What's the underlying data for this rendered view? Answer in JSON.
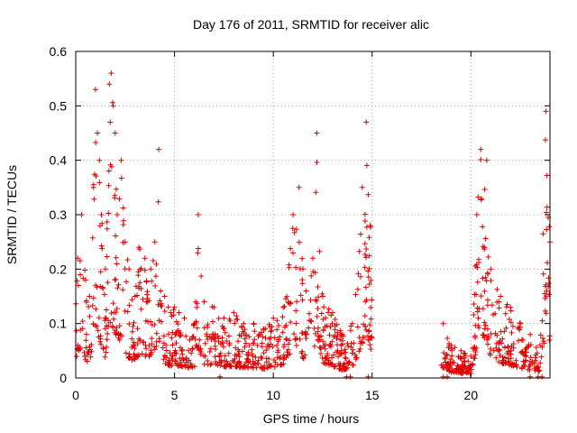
{
  "chart_data": {
    "type": "scatter",
    "title": "Day 176 of 2011, SRMTID for receiver alic",
    "xlabel": "GPS time / hours",
    "ylabel": "SRMTID / TECUs",
    "xlim": [
      0,
      24
    ],
    "ylim": [
      0,
      0.6
    ],
    "xticks": [
      0,
      5,
      10,
      15,
      20
    ],
    "xtick_labels": [
      "0",
      "5",
      "10",
      "15",
      "20"
    ],
    "yticks": [
      0,
      0.1,
      0.2,
      0.3,
      0.4,
      0.5,
      0.6
    ],
    "ytick_labels": [
      "0",
      "0.1",
      "0.2",
      "0.3",
      "0.4",
      "0.5",
      "0.6"
    ],
    "grid": true,
    "marker": "+",
    "color": "#e00000",
    "gap_hours": [
      15,
      18.5
    ],
    "series": [
      {
        "name": "SRMTID",
        "x": [
          0.1,
          0.3,
          0.5,
          0.7,
          0.9,
          1.0,
          1.1,
          1.2,
          1.3,
          1.5,
          1.7,
          1.8,
          1.9,
          2.0,
          2.1,
          2.3,
          2.5,
          2.7,
          3.0,
          3.2,
          3.5,
          3.8,
          4.0,
          4.2,
          4.3,
          4.5,
          4.8,
          5.0,
          5.5,
          6.0,
          6.2,
          6.5,
          7.0,
          7.5,
          8.0,
          8.5,
          9.0,
          9.5,
          10.0,
          10.5,
          11.0,
          11.3,
          11.5,
          12.0,
          12.2,
          12.5,
          13.0,
          13.5,
          14.0,
          14.5,
          14.7,
          14.9,
          18.6,
          19.0,
          19.5,
          20.0,
          20.3,
          20.5,
          20.8,
          21.0,
          21.5,
          22.0,
          22.5,
          23.0,
          23.5,
          23.8,
          24.0
        ],
        "y": [
          0.22,
          0.3,
          0.18,
          0.15,
          0.35,
          0.53,
          0.45,
          0.4,
          0.3,
          0.2,
          0.54,
          0.56,
          0.5,
          0.45,
          0.3,
          0.4,
          0.25,
          0.2,
          0.15,
          0.24,
          0.22,
          0.2,
          0.25,
          0.42,
          0.16,
          0.15,
          0.12,
          0.13,
          0.11,
          0.1,
          0.3,
          0.14,
          0.13,
          0.11,
          0.12,
          0.1,
          0.1,
          0.09,
          0.11,
          0.13,
          0.3,
          0.35,
          0.2,
          0.22,
          0.45,
          0.15,
          0.12,
          0.08,
          0.1,
          0.35,
          0.47,
          0.28,
          0.1,
          0.06,
          0.05,
          0.04,
          0.3,
          0.42,
          0.4,
          0.2,
          0.15,
          0.13,
          0.1,
          0.08,
          0.06,
          0.49,
          0.25
        ]
      }
    ]
  }
}
